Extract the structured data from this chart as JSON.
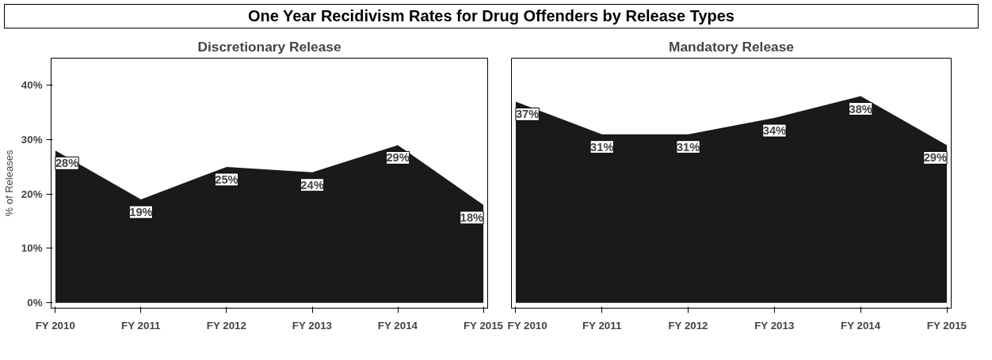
{
  "chart_data": [
    {
      "type": "area",
      "title": "One Year Recidivism Rates for Drug Offenders by Release Types",
      "subtitle": "Discretionary Release",
      "ylabel": "% of Releases",
      "categories": [
        "FY 2010",
        "FY 2011",
        "FY 2012",
        "FY 2013",
        "FY 2014",
        "FY 2015"
      ],
      "series": [
        {
          "color": "#1a1a1a",
          "values": [
            28,
            19,
            25,
            24,
            29,
            18
          ],
          "value_labels": [
            "28%",
            "19%",
            "25%",
            "24%",
            "29%",
            "18%"
          ]
        }
      ],
      "ylim": [
        -1,
        45
      ],
      "yticks": [
        {
          "value": 0,
          "label": "0%"
        },
        {
          "value": 10,
          "label": "10%"
        },
        {
          "value": 20,
          "label": "20%"
        },
        {
          "value": 30,
          "label": "30%"
        },
        {
          "value": 40,
          "label": "40%"
        }
      ],
      "grid": false
    },
    {
      "type": "area",
      "title": "Mandatory Release",
      "categories": [
        "FY 2010",
        "FY 2011",
        "FY 2012",
        "FY 2013",
        "FY 2014",
        "FY 2015"
      ],
      "series": [
        {
          "color": "#1a1a1a",
          "values": [
            37,
            31,
            31,
            34,
            38,
            29
          ],
          "value_labels": [
            "37%",
            "31%",
            "31%",
            "34%",
            "38%",
            "29%"
          ]
        }
      ],
      "ylim": [
        -1,
        45
      ],
      "grid": false,
      "tick_labels": "x"
    }
  ]
}
